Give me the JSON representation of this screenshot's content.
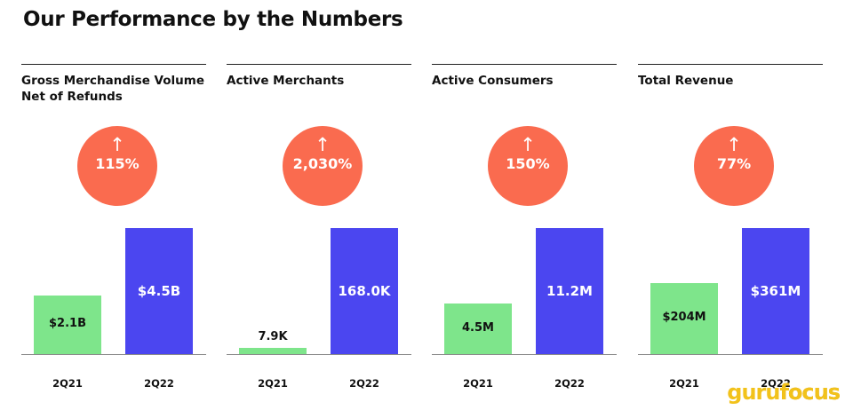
{
  "page": {
    "title": "Our Performance by the Numbers"
  },
  "watermark": {
    "part1": "guru",
    "part2": "focus"
  },
  "colors": {
    "bar_2q21": "#7ee58b",
    "bar_2q22": "#4b46f0",
    "growth_circle": "#fa6b4f"
  },
  "chart_data": [
    {
      "type": "bar",
      "title": "Gross Merchandise Volume Net of Refunds",
      "categories": [
        "2Q21",
        "2Q22"
      ],
      "values": [
        2.1,
        4.5
      ],
      "value_labels": [
        "$2.1B",
        "$4.5B"
      ],
      "unit": "billion USD",
      "growth_arrow": "↑",
      "growth": "115%",
      "ylim": [
        0,
        4.5
      ]
    },
    {
      "type": "bar",
      "title": "Active Merchants",
      "categories": [
        "2Q21",
        "2Q22"
      ],
      "values": [
        7.9,
        168.0
      ],
      "value_labels": [
        "7.9K",
        "168.0K"
      ],
      "unit": "thousand",
      "growth_arrow": "↑",
      "growth": "2,030%",
      "ylim": [
        0,
        168.0
      ]
    },
    {
      "type": "bar",
      "title": "Active Consumers",
      "categories": [
        "2Q21",
        "2Q22"
      ],
      "values": [
        4.5,
        11.2
      ],
      "value_labels": [
        "4.5M",
        "11.2M"
      ],
      "unit": "million",
      "growth_arrow": "↑",
      "growth": "150%",
      "ylim": [
        0,
        11.2
      ]
    },
    {
      "type": "bar",
      "title": "Total Revenue",
      "categories": [
        "2Q21",
        "2Q22"
      ],
      "values": [
        204,
        361
      ],
      "value_labels": [
        "$204M",
        "$361M"
      ],
      "unit": "million USD",
      "growth_arrow": "↑",
      "growth": "77%",
      "ylim": [
        0,
        361
      ]
    }
  ]
}
